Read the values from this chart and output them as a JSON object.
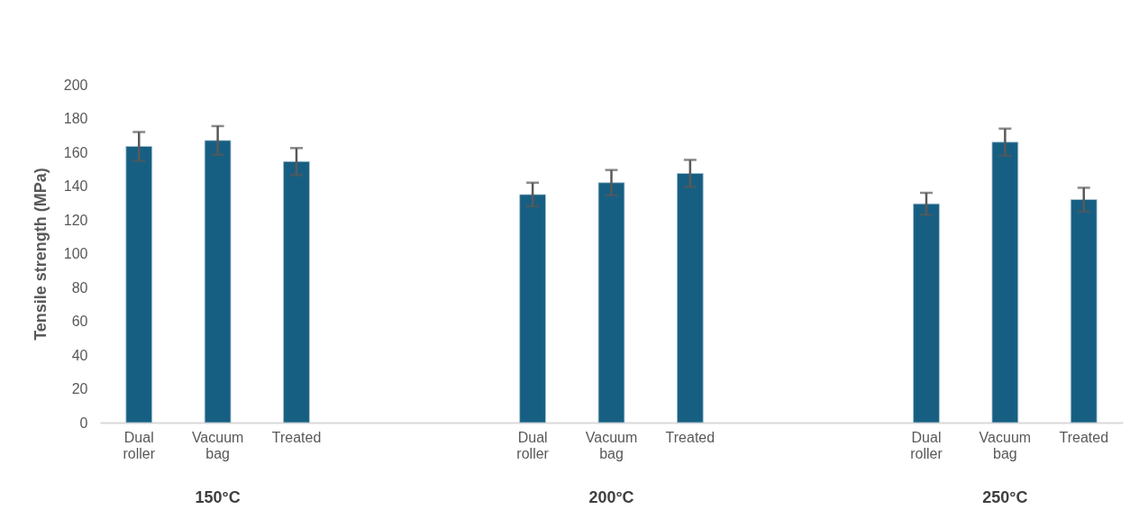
{
  "chart_data": {
    "type": "bar",
    "ylabel": "Tensile strength (MPa)",
    "categories": [
      "Dual roller",
      "Vacuum bag",
      "Treated",
      null,
      null,
      "Dual roller",
      "Vacuum bag",
      "Treated",
      null,
      null,
      "Dual roller",
      "Vacuum bag",
      "Treated"
    ],
    "values": [
      163.5,
      167,
      154.5,
      null,
      null,
      135,
      142,
      147.5,
      null,
      null,
      129.5,
      166,
      132
    ],
    "errors": [
      8.5,
      8.5,
      8,
      null,
      null,
      7,
      7.5,
      8,
      null,
      null,
      6.5,
      8,
      7
    ],
    "color": "#175f82",
    "ylim": [
      0,
      200
    ],
    "yticks": [
      0,
      20,
      40,
      60,
      80,
      100,
      120,
      140,
      160,
      180,
      200
    ],
    "grid": false,
    "annotations": [
      "150°C",
      "200°C",
      "250°C"
    ]
  }
}
